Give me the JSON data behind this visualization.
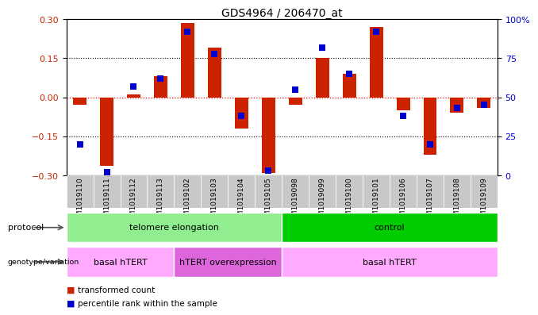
{
  "title": "GDS4964 / 206470_at",
  "samples": [
    "GSM1019110",
    "GSM1019111",
    "GSM1019112",
    "GSM1019113",
    "GSM1019102",
    "GSM1019103",
    "GSM1019104",
    "GSM1019105",
    "GSM1019098",
    "GSM1019099",
    "GSM1019100",
    "GSM1019101",
    "GSM1019106",
    "GSM1019107",
    "GSM1019108",
    "GSM1019109"
  ],
  "red_values": [
    -0.03,
    -0.265,
    0.01,
    0.08,
    0.285,
    0.19,
    -0.12,
    -0.29,
    -0.03,
    0.15,
    0.09,
    0.27,
    -0.05,
    -0.22,
    -0.06,
    -0.04
  ],
  "blue_values": [
    20,
    2,
    57,
    62,
    92,
    78,
    38,
    3,
    55,
    82,
    65,
    92,
    38,
    20,
    43,
    45
  ],
  "ylim_left": [
    -0.3,
    0.3
  ],
  "ylim_right": [
    0,
    100
  ],
  "yticks_left": [
    -0.3,
    -0.15,
    0,
    0.15,
    0.3
  ],
  "yticks_right": [
    0,
    25,
    50,
    75,
    100
  ],
  "protocol_groups": [
    {
      "label": "telomere elongation",
      "start": 0,
      "end": 8,
      "color": "#90EE90"
    },
    {
      "label": "control",
      "start": 8,
      "end": 16,
      "color": "#00CC00"
    }
  ],
  "genotype_groups": [
    {
      "label": "basal hTERT",
      "start": 0,
      "end": 4,
      "color": "#FFAAFF"
    },
    {
      "label": "hTERT overexpression",
      "start": 4,
      "end": 8,
      "color": "#DD66DD"
    },
    {
      "label": "basal hTERT",
      "start": 8,
      "end": 16,
      "color": "#FFAAFF"
    }
  ],
  "legend_red_label": "transformed count",
  "legend_blue_label": "percentile rank within the sample",
  "red_color": "#CC2200",
  "blue_color": "#0000CC",
  "bar_width": 0.5,
  "blue_marker_size": 6,
  "xticklabel_bg": "#C8C8C8",
  "fig_bg": "#FFFFFF",
  "title_fontsize": 10,
  "tick_fontsize": 8,
  "label_fontsize": 8,
  "annotation_fontsize": 8
}
